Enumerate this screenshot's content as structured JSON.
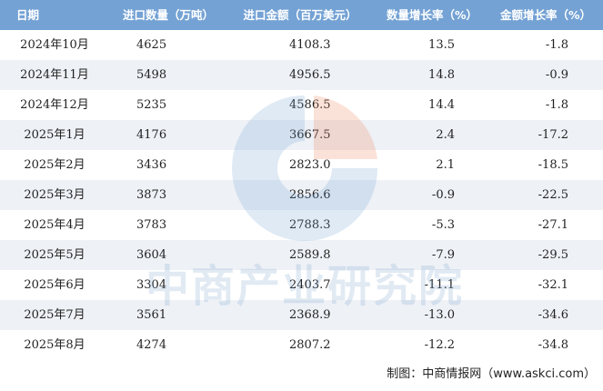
{
  "table": {
    "header": [
      "日期",
      "进口数量（万吨）",
      "进口金额（百万美元）",
      "数量增长率（%）",
      "金额增长率（%）"
    ],
    "rows": [
      [
        "2024年10月",
        "4625",
        "4108.3",
        "13.5",
        "-1.8"
      ],
      [
        "2024年11月",
        "5498",
        "4956.5",
        "14.8",
        "-0.9"
      ],
      [
        "2024年12月",
        "5235",
        "4586.5",
        "14.4",
        "-1.8"
      ],
      [
        "2025年1月",
        "4176",
        "3667.5",
        "2.4",
        "-17.2"
      ],
      [
        "2025年2月",
        "3436",
        "2823.0",
        "2.1",
        "-18.5"
      ],
      [
        "2025年3月",
        "3873",
        "2856.6",
        "-0.9",
        "-22.5"
      ],
      [
        "2025年4月",
        "3783",
        "2788.3",
        "-5.3",
        "-27.1"
      ],
      [
        "2025年5月",
        "3604",
        "2589.8",
        "-7.9",
        "-29.5"
      ],
      [
        "2025年6月",
        "3304",
        "2403.7",
        "-11.1",
        "-32.1"
      ],
      [
        "2025年7月",
        "3561",
        "2368.9",
        "-13.0",
        "-34.6"
      ],
      [
        "2025年8月",
        "4274",
        "2807.2",
        "-12.2",
        "-34.8"
      ]
    ]
  },
  "watermark": "中商产业研究院",
  "footer": "制图：中商情报网（www.askci.com）"
}
